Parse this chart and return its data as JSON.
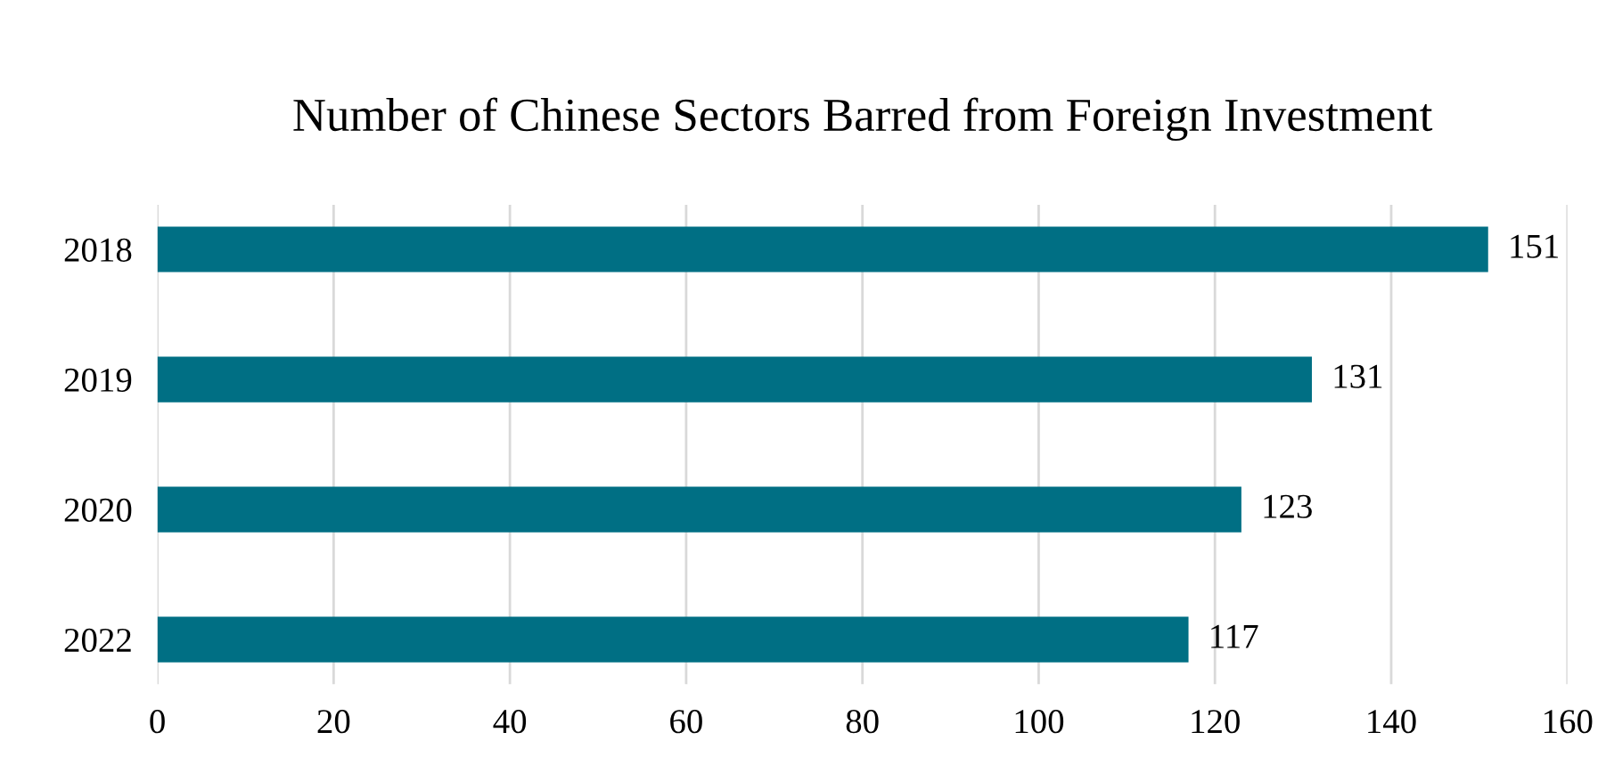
{
  "chart_data": {
    "type": "bar",
    "orientation": "horizontal",
    "title": "Number of Chinese Sectors Barred from Foreign Investment",
    "categories": [
      "2018",
      "2019",
      "2020",
      "2022"
    ],
    "values": [
      151,
      131,
      123,
      117
    ],
    "color": "#006f84",
    "xlim": [
      0,
      160
    ],
    "xticks": [
      0,
      20,
      40,
      60,
      80,
      100,
      120,
      140,
      160
    ],
    "grid": "x",
    "data_labels": true
  }
}
